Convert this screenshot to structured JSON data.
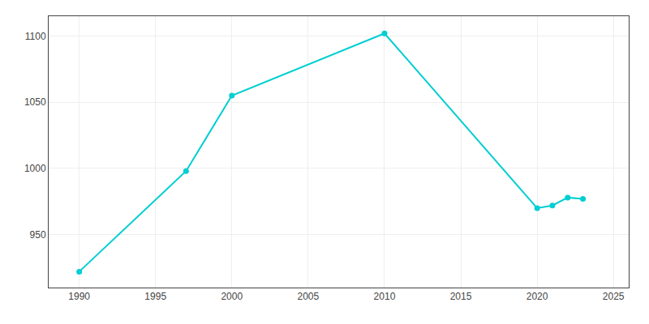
{
  "chart_data": {
    "type": "line",
    "x": [
      1990,
      1997,
      2000,
      2010,
      2020,
      2021,
      2022,
      2023
    ],
    "values": [
      922,
      998,
      1055,
      1102,
      970,
      972,
      978,
      977
    ],
    "color": "#00CED1",
    "marker": "circle",
    "xlim": [
      1988,
      2026
    ],
    "ylim": [
      910,
      1115
    ],
    "xticks": [
      1990,
      1995,
      2000,
      2005,
      2010,
      2015,
      2020,
      2025
    ],
    "yticks": [
      950,
      1000,
      1050,
      1100
    ],
    "grid": true
  }
}
